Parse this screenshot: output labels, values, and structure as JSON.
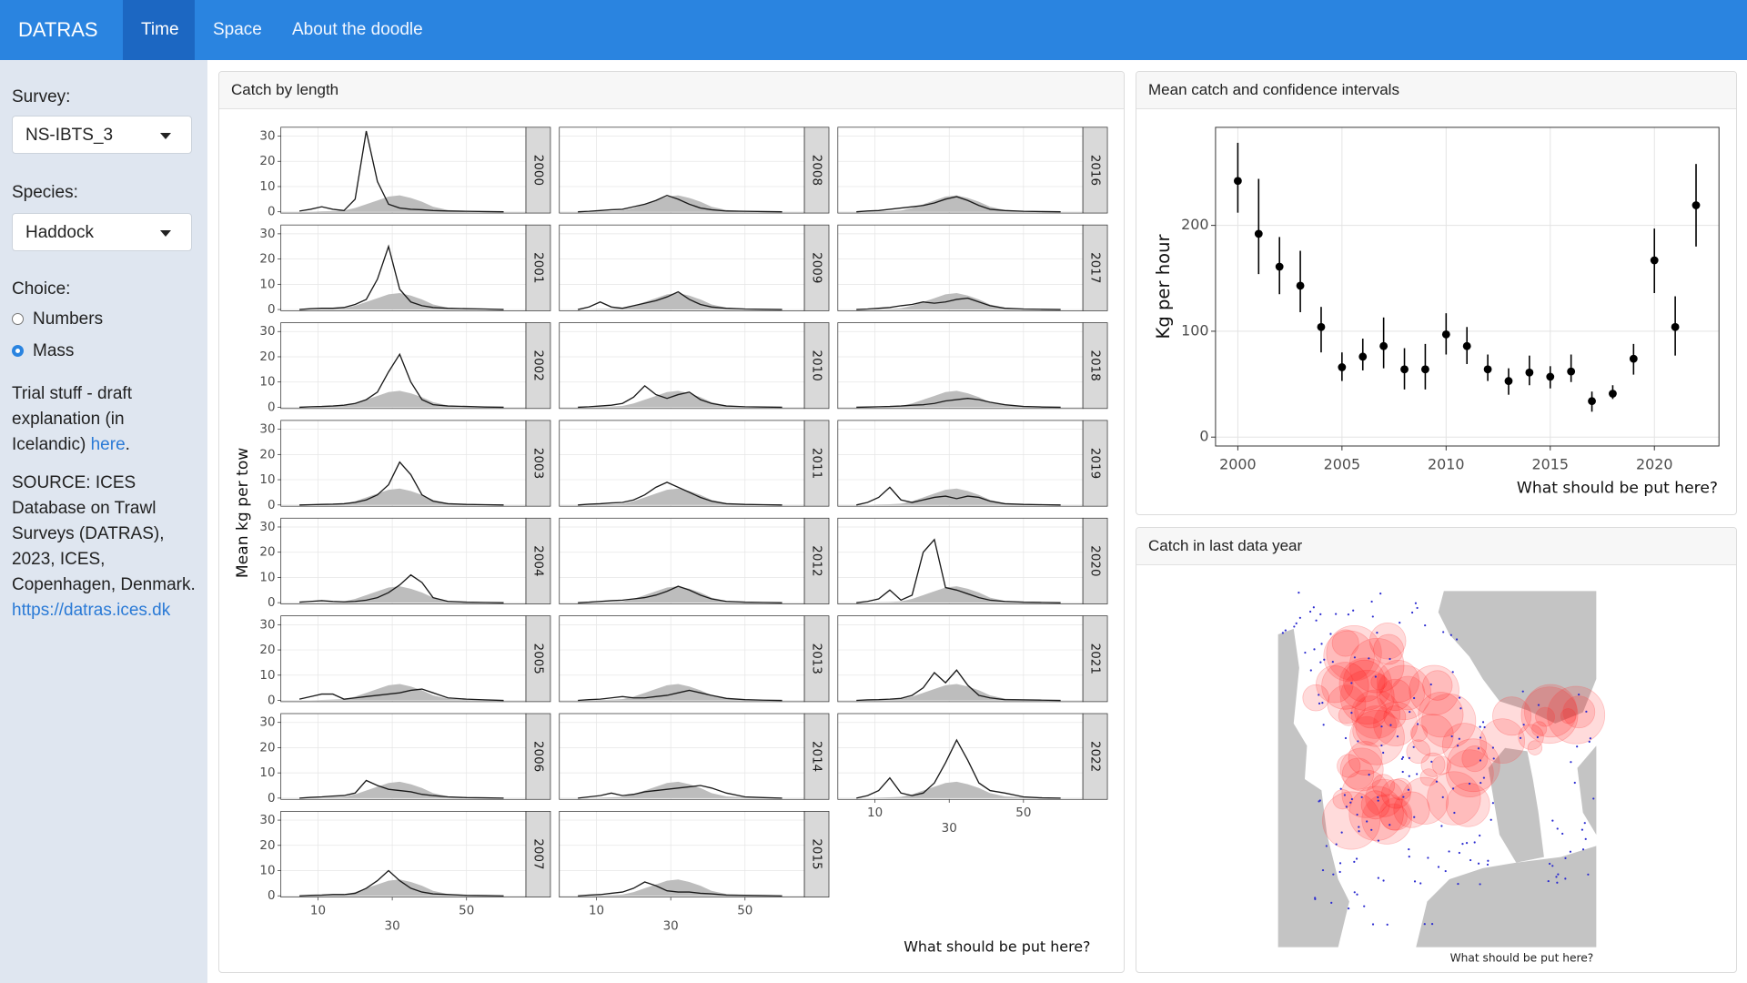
{
  "navbar": {
    "brand": "DATRAS",
    "tabs": [
      "Time",
      "Space",
      "About the doodle"
    ],
    "active_tab": 0
  },
  "sidebar": {
    "survey_label": "Survey:",
    "survey": "NS-IBTS_3",
    "species_label": "Species:",
    "species": "Haddock",
    "choice_label": "Choice:",
    "choices": [
      "Numbers",
      "Mass"
    ],
    "selected_choice": 1,
    "note": "Trial stuff - draft explanation (in Icelandic)",
    "note_link": "here",
    "note_end": ".",
    "source": "SOURCE: ICES Database on Trawl Surveys (DATRAS), 2023, ICES, Copenhagen, Denmark.",
    "source_link": "https://datras.ices.dk"
  },
  "chart_data": [
    {
      "type": "facet-line",
      "title": "Catch by length",
      "y_label": "Mean kg per tow",
      "x_label": "What should be put here?",
      "x": [
        5,
        8,
        11,
        14,
        17,
        20,
        23,
        26,
        29,
        32,
        35,
        38,
        41,
        45,
        50,
        55,
        60
      ],
      "xlim": [
        0,
        66
      ],
      "ylim": [
        -0.5,
        33.5
      ],
      "xticks": [
        10,
        30,
        50
      ],
      "yticks": [
        0,
        10,
        20,
        30
      ],
      "color": "#1a1a1a",
      "grid": true,
      "reference": {
        "color": "#bdbdbd",
        "values": [
          0,
          0,
          0.2,
          0.3,
          0.5,
          1.5,
          3,
          4.5,
          6,
          6.5,
          5.5,
          4,
          2,
          0.7,
          0.3,
          0.1,
          0
        ]
      },
      "facets": [
        {
          "name": "2000",
          "values": [
            0.3,
            1,
            2,
            1,
            0.5,
            5,
            32,
            12,
            3,
            1.5,
            1,
            0.8,
            0.5,
            0.3,
            0.2,
            0.1,
            0
          ]
        },
        {
          "name": "2001",
          "values": [
            0,
            0.3,
            0.5,
            0.5,
            0.8,
            2,
            4,
            12,
            25,
            8,
            3,
            1.5,
            0.8,
            0.5,
            0.3,
            0.2,
            0
          ]
        },
        {
          "name": "2002",
          "values": [
            0,
            0.2,
            0.3,
            0.5,
            0.8,
            1.5,
            3,
            6,
            14,
            21,
            10,
            3,
            1,
            0.5,
            0.3,
            0.1,
            0
          ]
        },
        {
          "name": "2003",
          "values": [
            0,
            0.1,
            0.2,
            0.3,
            0.5,
            1,
            2,
            4,
            8,
            17,
            12,
            4,
            1.5,
            0.5,
            0.2,
            0.1,
            0
          ]
        },
        {
          "name": "2004",
          "values": [
            0.2,
            0.5,
            0.8,
            0.5,
            0.3,
            0.5,
            1,
            2,
            4,
            7,
            11,
            8,
            2,
            0.5,
            0.2,
            0.1,
            0
          ]
        },
        {
          "name": "2005",
          "values": [
            0.5,
            1.5,
            2.5,
            2.5,
            0.5,
            1,
            1.5,
            2,
            2.5,
            3,
            4,
            4.5,
            3,
            1,
            0.5,
            0.2,
            0
          ]
        },
        {
          "name": "2006",
          "values": [
            0,
            0.3,
            0.5,
            0.8,
            1,
            2,
            7,
            5,
            3.5,
            3,
            2.5,
            1.5,
            1,
            0.5,
            0.2,
            0.1,
            0
          ]
        },
        {
          "name": "2007",
          "values": [
            0,
            0.2,
            0.3,
            0.5,
            0.5,
            1,
            3,
            6,
            10,
            6,
            3,
            1.5,
            0.8,
            0.5,
            0.2,
            0.1,
            0
          ]
        },
        {
          "name": "2008",
          "values": [
            0,
            0.2,
            0.5,
            0.8,
            1,
            2,
            3,
            4.5,
            6.5,
            5,
            3,
            1.5,
            0.8,
            0.3,
            0.2,
            0.1,
            0
          ]
        },
        {
          "name": "2009",
          "values": [
            0,
            1,
            3,
            1,
            0.5,
            1.5,
            2.5,
            3.5,
            5,
            7,
            4,
            2,
            1,
            0.5,
            0.2,
            0.1,
            0
          ]
        },
        {
          "name": "2010",
          "values": [
            0,
            0.2,
            0.5,
            0.8,
            1.5,
            4,
            8.5,
            5,
            3.5,
            5,
            6,
            3,
            1.5,
            0.5,
            0.2,
            0.1,
            0
          ]
        },
        {
          "name": "2011",
          "values": [
            0,
            0.3,
            0.5,
            0.8,
            1,
            2,
            4,
            7,
            9,
            7,
            5,
            3,
            1.5,
            0.5,
            0.2,
            0.1,
            0
          ]
        },
        {
          "name": "2012",
          "values": [
            0,
            0.2,
            0.5,
            0.8,
            1,
            1.5,
            2,
            3,
            4.5,
            6.5,
            5,
            3,
            1.5,
            0.5,
            0.2,
            0.1,
            0
          ]
        },
        {
          "name": "2013",
          "values": [
            0,
            0.3,
            0.5,
            1,
            1.5,
            1,
            1,
            1.5,
            2,
            3,
            4,
            3,
            2,
            0.8,
            0.3,
            0.1,
            0
          ]
        },
        {
          "name": "2014",
          "values": [
            0,
            0.5,
            1,
            2,
            1,
            1.5,
            2.5,
            3,
            3.5,
            4,
            4.5,
            5,
            4,
            2,
            0.5,
            0.2,
            0
          ]
        },
        {
          "name": "2015",
          "values": [
            0,
            0.3,
            0.5,
            1,
            1.5,
            3,
            5.5,
            4,
            2,
            1.5,
            1.5,
            1,
            0.8,
            0.3,
            0.2,
            0.1,
            0
          ]
        },
        {
          "name": "2016",
          "values": [
            0,
            0.3,
            0.5,
            1,
            1.5,
            2,
            2.5,
            3.5,
            5,
            6,
            4.5,
            2.5,
            1,
            0.5,
            0.2,
            0.1,
            0
          ]
        },
        {
          "name": "2017",
          "values": [
            0,
            0.2,
            0.5,
            0.8,
            1.5,
            2,
            3,
            2.5,
            3,
            4,
            4.5,
            3,
            1.5,
            0.5,
            0.2,
            0.1,
            0
          ]
        },
        {
          "name": "2018",
          "values": [
            0,
            0.1,
            0.2,
            0.3,
            0.5,
            0.8,
            1,
            1.5,
            2.5,
            3,
            3.5,
            3,
            2,
            1,
            0.3,
            0.1,
            0
          ]
        },
        {
          "name": "2019",
          "values": [
            0,
            1,
            3,
            7,
            2,
            1,
            2,
            3,
            3.5,
            2.5,
            3.5,
            3,
            1.5,
            0.5,
            0.2,
            0.1,
            0
          ]
        },
        {
          "name": "2020",
          "values": [
            0,
            0.5,
            1.5,
            5,
            1,
            3,
            20,
            25,
            6,
            5,
            3.5,
            2,
            1,
            0.5,
            0.2,
            0.1,
            0
          ]
        },
        {
          "name": "2021",
          "values": [
            0,
            0.2,
            0.3,
            0.5,
            0.8,
            2,
            5,
            11,
            7,
            12,
            6,
            2,
            1,
            0.3,
            0.2,
            0.1,
            0
          ]
        },
        {
          "name": "2022",
          "values": [
            0,
            1,
            3,
            8,
            2,
            1,
            2,
            6,
            14,
            23,
            15,
            6,
            3,
            2,
            0.5,
            0.1,
            0
          ]
        }
      ]
    },
    {
      "type": "pointrange",
      "title": "Mean catch and confidence intervals",
      "y_label": "Kg per hour",
      "x_label": "What should be put here?",
      "x": [
        2000,
        2001,
        2002,
        2003,
        2004,
        2005,
        2006,
        2007,
        2008,
        2009,
        2010,
        2011,
        2012,
        2013,
        2014,
        2015,
        2016,
        2017,
        2018,
        2019,
        2020,
        2021,
        2022
      ],
      "values": [
        242,
        192,
        161,
        143,
        104,
        66,
        76,
        86,
        64,
        64,
        97,
        86,
        64,
        53,
        61,
        57,
        62,
        34,
        41,
        74,
        167,
        104,
        219
      ],
      "lower": [
        212,
        154,
        135,
        118,
        80,
        53,
        63,
        65,
        45,
        45,
        78,
        69,
        53,
        40,
        49,
        46,
        52,
        24,
        36,
        59,
        136,
        77,
        180
      ],
      "upper": [
        278,
        244,
        189,
        176,
        123,
        80,
        93,
        113,
        84,
        88,
        117,
        104,
        78,
        65,
        77,
        67,
        78,
        43,
        49,
        88,
        197,
        133,
        258
      ],
      "xlim": [
        1998.93,
        2023.1
      ],
      "ylim": [
        -8.4,
        292.6
      ],
      "xticks": [
        2000,
        2005,
        2010,
        2015,
        2020
      ],
      "yticks": [
        0,
        100,
        200
      ],
      "color": "#000000",
      "grid": true
    },
    {
      "type": "map",
      "title": "Catch in last data year",
      "x_label": "What should be put here?"
    }
  ]
}
